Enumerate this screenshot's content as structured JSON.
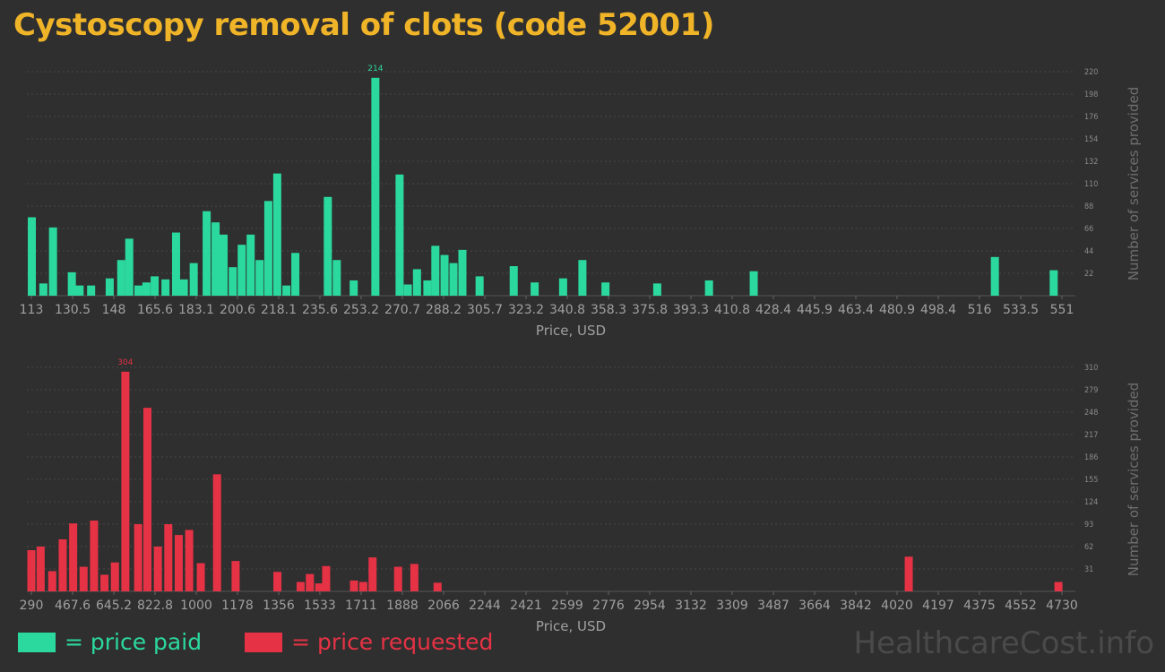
{
  "title": "Cystoscopy removal of clots (code 52001)",
  "colors": {
    "paid": "#2bd99f",
    "requested": "#e63245",
    "title": "#f0b428",
    "axis_text": "#a0a0a0"
  },
  "legend": {
    "paid_label": "= price paid",
    "requested_label": "= price requested"
  },
  "watermark": "HealthcareCost.info",
  "chart_data": [
    {
      "type": "bar",
      "xlabel": "Price, USD",
      "ylabel": "Number of services provided",
      "xlim": [
        113,
        551
      ],
      "ylim": [
        0,
        220
      ],
      "yticks": [
        22,
        44,
        66,
        88,
        110,
        132,
        154,
        176,
        198,
        220
      ],
      "xtick_labels": [
        "113",
        "130.5",
        "148",
        "165.6",
        "183.1",
        "200.6",
        "218.1",
        "235.6",
        "253.2",
        "270.7",
        "288.2",
        "305.7",
        "323.2",
        "340.8",
        "358.3",
        "375.8",
        "393.3",
        "410.8",
        "428.4",
        "445.9",
        "463.4",
        "480.9",
        "498.4",
        "516",
        "533.5",
        "551"
      ],
      "peak_label": "214",
      "color": "#2bd99f",
      "x": [
        113.2,
        118.1,
        122.2,
        130.2,
        133.5,
        138.4,
        146.3,
        151.2,
        154.6,
        158.5,
        161.9,
        165.4,
        170.0,
        174.5,
        177.8,
        182.0,
        187.5,
        191.3,
        194.7,
        198.6,
        202.4,
        206.2,
        210.0,
        213.7,
        217.5,
        221.4,
        225.2,
        239.0,
        242.8,
        250.0,
        259.2,
        269.5,
        273.0,
        276.9,
        281.3,
        284.7,
        288.6,
        292.4,
        296.2,
        303.5,
        318.0,
        326.9,
        339.0,
        347.2,
        357.0,
        379.0,
        401.0,
        420.0,
        522.5,
        547.5
      ],
      "values": [
        77,
        12,
        67,
        23,
        10,
        10,
        17,
        35,
        56,
        10,
        13,
        19,
        16,
        62,
        16,
        32,
        83,
        72,
        60,
        28,
        50,
        60,
        35,
        93,
        120,
        10,
        42,
        97,
        35,
        15,
        214,
        119,
        11,
        26,
        15,
        49,
        40,
        32,
        45,
        19,
        29,
        13,
        17,
        35,
        13,
        12,
        15,
        24,
        38,
        25
      ]
    },
    {
      "type": "bar",
      "xlabel": "Price, USD",
      "ylabel": "Number of services provided",
      "xlim": [
        290,
        4730
      ],
      "ylim": [
        0,
        310
      ],
      "yticks": [
        31,
        62,
        93,
        124,
        155,
        186,
        217,
        248,
        279,
        310
      ],
      "xtick_labels": [
        "290",
        "467.6",
        "645.2",
        "822.8",
        "1000",
        "1178",
        "1356",
        "1533",
        "1711",
        "1888",
        "2066",
        "2244",
        "2421",
        "2599",
        "2776",
        "2954",
        "3132",
        "3309",
        "3487",
        "3664",
        "3842",
        "4020",
        "4197",
        "4375",
        "4552",
        "4730"
      ],
      "peak_label": "304",
      "color": "#e63245",
      "x": [
        290,
        330,
        380,
        425,
        470,
        515,
        560,
        605,
        650,
        695,
        750,
        790,
        835,
        880,
        925,
        970,
        1020,
        1090,
        1170,
        1350,
        1450,
        1490,
        1530,
        1560,
        1680,
        1720,
        1760,
        1870,
        1940,
        2040,
        4070,
        4715
      ],
      "values": [
        57,
        62,
        28,
        72,
        94,
        34,
        98,
        23,
        40,
        304,
        93,
        254,
        62,
        93,
        78,
        85,
        39,
        162,
        42,
        27,
        13,
        24,
        11,
        35,
        15,
        13,
        47,
        34,
        38,
        12,
        48,
        13
      ]
    }
  ]
}
